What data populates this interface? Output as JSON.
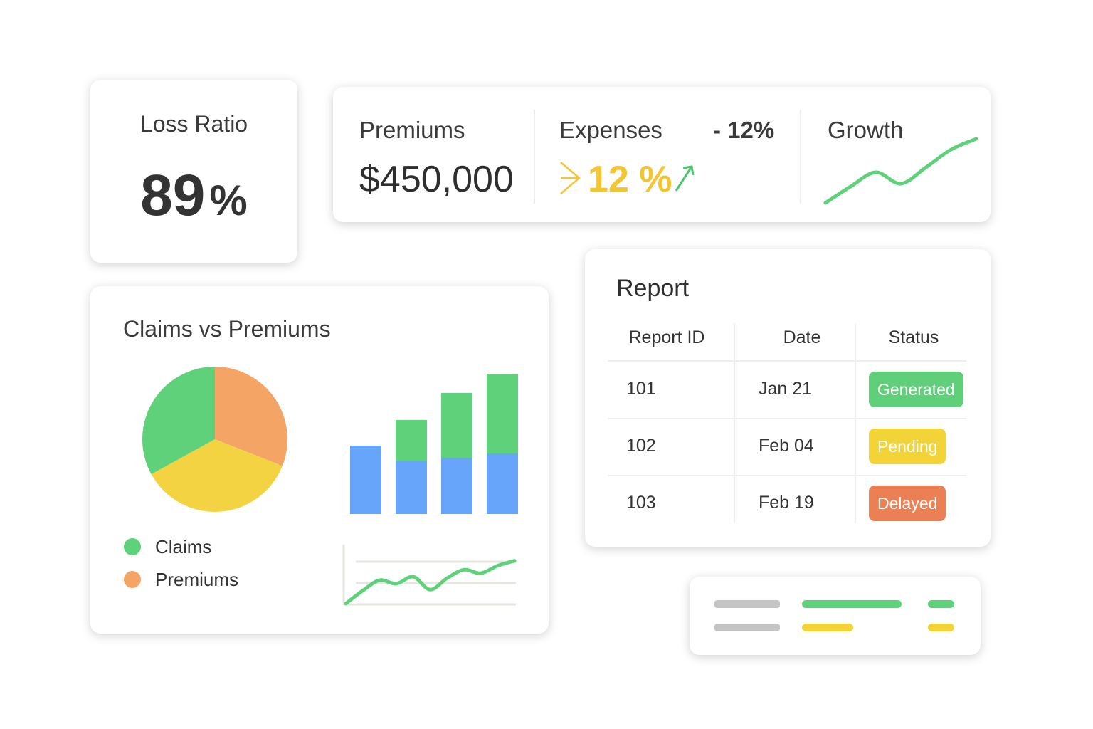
{
  "loss_ratio": {
    "label": "Loss Ratio",
    "number": "89",
    "unit": "%"
  },
  "kpis": {
    "premiums": {
      "label": "Premiums",
      "value": "$450,000"
    },
    "expenses": {
      "label": "Expenses",
      "change": "- 12%",
      "value": "12 %"
    },
    "growth": {
      "label": "Growth"
    }
  },
  "claims_card": {
    "title": "Claims vs Premiums"
  },
  "report": {
    "title": "Report",
    "columns": [
      "Report ID",
      "Date",
      "Status"
    ],
    "rows": [
      [
        "101",
        "Jan 21",
        "Generated"
      ],
      [
        "102",
        "Feb 04",
        "Pending"
      ],
      [
        "103",
        "Feb 19",
        "Delayed"
      ]
    ],
    "status_colors": [
      "#5fcf7a",
      "#f2d438",
      "#ec8055"
    ]
  },
  "chart_data": [
    {
      "type": "pie",
      "categories": [
        "Premiums",
        null,
        "Claims"
      ],
      "values": [
        31,
        36,
        33
      ],
      "colors": [
        "#f4a566",
        "#f4d342",
        "#60d17b"
      ],
      "legend_order": [
        2,
        0
      ]
    },
    {
      "type": "bar",
      "stacked": true,
      "ylim": [
        0,
        200
      ],
      "series": [
        {
          "color": "#67a5fb",
          "values": [
            96,
            74,
            79,
            85
          ]
        },
        {
          "color": "#60d17b",
          "values": [
            null,
            58,
            91,
            112
          ]
        }
      ]
    },
    {
      "type": "line",
      "ylim": [
        0,
        100
      ],
      "color": "#60d17b",
      "values": [
        3,
        29,
        50,
        43,
        57,
        31,
        54,
        71,
        64,
        79,
        89
      ]
    },
    {
      "type": "line",
      "ylim": [
        0,
        100
      ],
      "color": "#60d17b",
      "values": [
        7,
        30,
        50,
        34,
        57,
        82,
        97
      ]
    }
  ]
}
